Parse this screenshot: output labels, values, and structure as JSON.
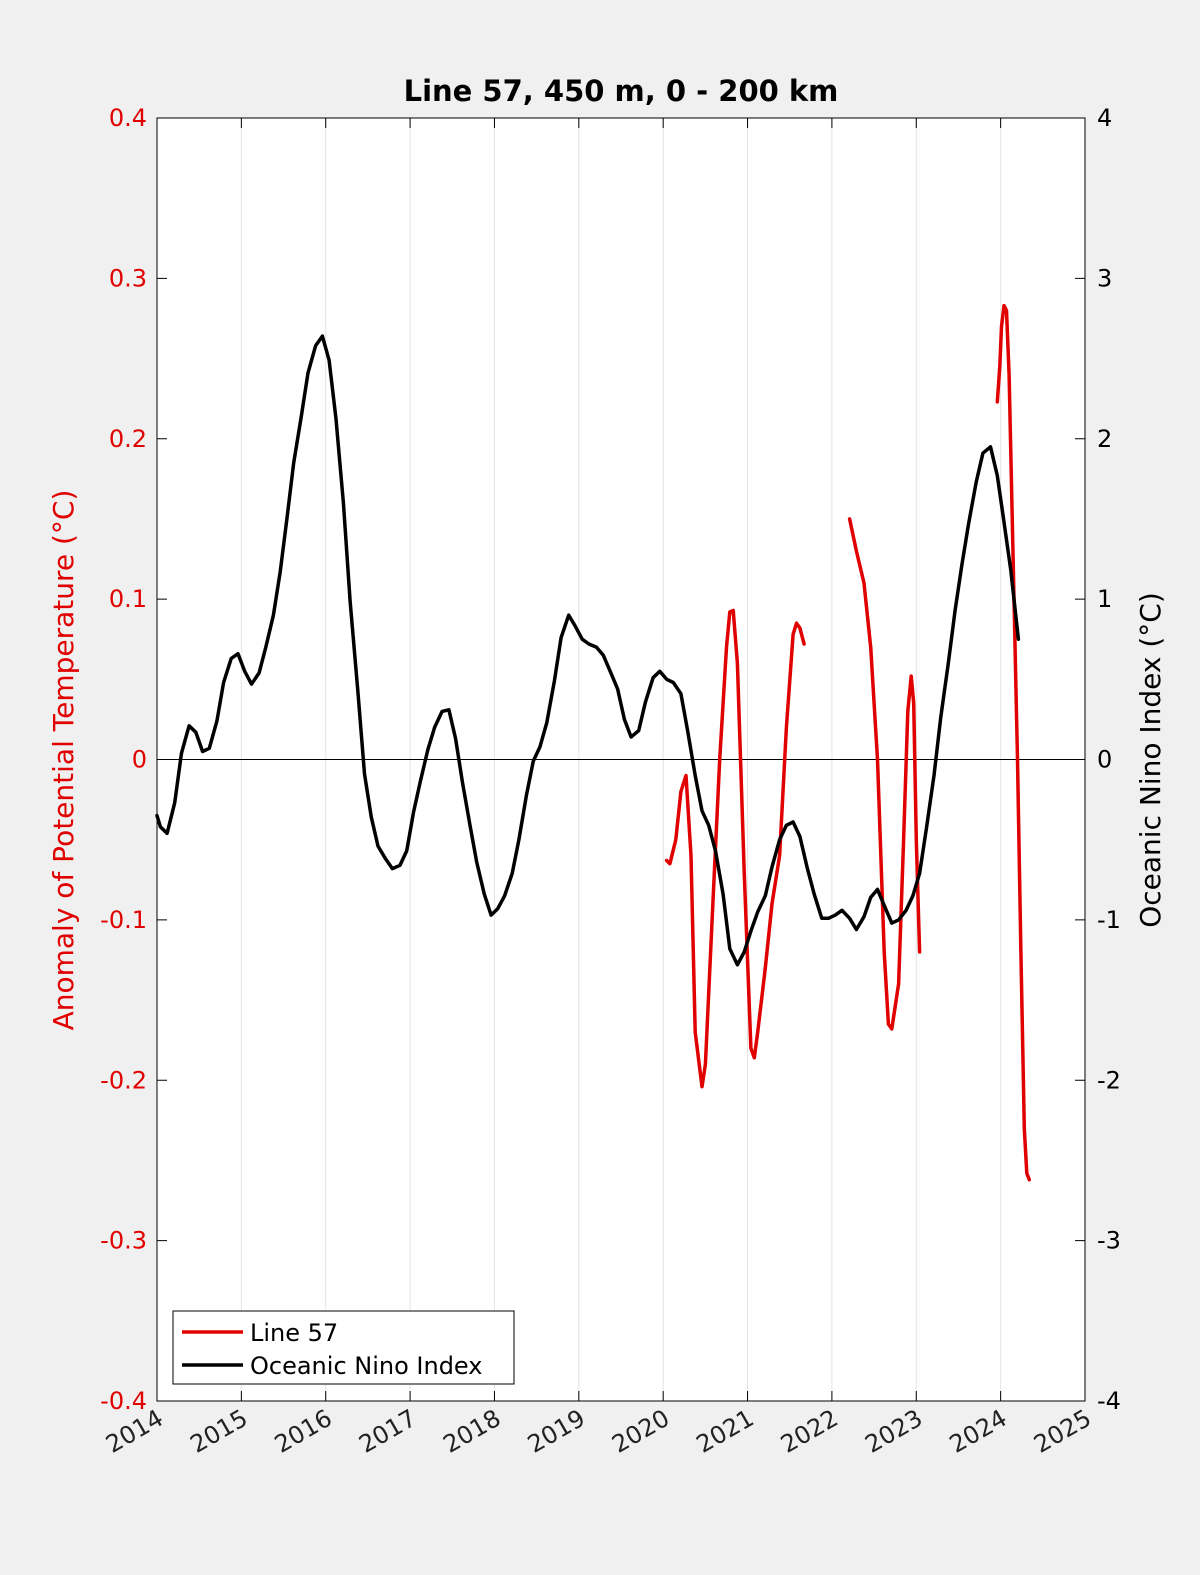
{
  "chart_data": {
    "type": "line",
    "title": "Line 57, 450 m, 0 - 200 km",
    "ylabel_left": "Anomaly of Potential Temperature (°C)",
    "ylabel_right": "Oceanic Nino Index (°C)",
    "xlim": [
      2014,
      2025
    ],
    "ylim_left": [
      -0.4,
      0.4
    ],
    "ylim_right": [
      -4,
      4
    ],
    "x_ticks": [
      "2014",
      "2015",
      "2016",
      "2017",
      "2018",
      "2019",
      "2020",
      "2021",
      "2022",
      "2023",
      "2024",
      "2025"
    ],
    "y_ticks_left": [
      "0.4",
      "0.3",
      "0.2",
      "0.1",
      "0",
      "-0.1",
      "-0.2",
      "-0.3",
      "-0.4"
    ],
    "y_ticks_right": [
      "4",
      "3",
      "2",
      "1",
      "0",
      "-1",
      "-2",
      "-3",
      "-4"
    ],
    "grid": "vertical",
    "legend_position": "bottom-left",
    "colors": {
      "line57": "#e00000",
      "oni": "#000000"
    },
    "series": [
      {
        "name": "Line 57",
        "axis": "left",
        "segments": [
          [
            [
              2020.04,
              -0.063
            ],
            [
              2020.08,
              -0.065
            ],
            [
              2020.15,
              -0.05
            ],
            [
              2020.21,
              -0.02
            ],
            [
              2020.27,
              -0.01
            ],
            [
              2020.33,
              -0.06
            ],
            [
              2020.38,
              -0.17
            ],
            [
              2020.46,
              -0.204
            ],
            [
              2020.5,
              -0.19
            ],
            [
              2020.58,
              -0.1
            ],
            [
              2020.67,
              0.0
            ],
            [
              2020.75,
              0.07
            ],
            [
              2020.79,
              0.092
            ],
            [
              2020.83,
              0.093
            ],
            [
              2020.88,
              0.06
            ],
            [
              2020.96,
              -0.07
            ],
            [
              2021.04,
              -0.18
            ],
            [
              2021.08,
              -0.186
            ],
            [
              2021.12,
              -0.17
            ],
            [
              2021.21,
              -0.13
            ],
            [
              2021.29,
              -0.09
            ],
            [
              2021.38,
              -0.06
            ],
            [
              2021.46,
              0.02
            ],
            [
              2021.54,
              0.078
            ],
            [
              2021.58,
              0.085
            ],
            [
              2021.62,
              0.082
            ],
            [
              2021.67,
              0.072
            ]
          ],
          [
            [
              2022.21,
              0.15
            ],
            [
              2022.29,
              0.13
            ],
            [
              2022.38,
              0.11
            ],
            [
              2022.46,
              0.07
            ],
            [
              2022.54,
              0.0
            ],
            [
              2022.62,
              -0.12
            ],
            [
              2022.67,
              -0.165
            ],
            [
              2022.71,
              -0.168
            ],
            [
              2022.79,
              -0.14
            ],
            [
              2022.85,
              -0.05
            ],
            [
              2022.9,
              0.03
            ],
            [
              2022.94,
              0.052
            ],
            [
              2022.97,
              0.035
            ],
            [
              2023.0,
              -0.05
            ],
            [
              2023.04,
              -0.12
            ]
          ],
          [
            [
              2023.96,
              0.223
            ],
            [
              2023.99,
              0.245
            ],
            [
              2024.01,
              0.27
            ],
            [
              2024.04,
              0.283
            ],
            [
              2024.07,
              0.28
            ],
            [
              2024.1,
              0.24
            ],
            [
              2024.15,
              0.12
            ],
            [
              2024.2,
              0.0
            ],
            [
              2024.24,
              -0.12
            ],
            [
              2024.28,
              -0.23
            ],
            [
              2024.31,
              -0.258
            ],
            [
              2024.34,
              -0.262
            ]
          ]
        ]
      },
      {
        "name": "Oceanic Nino Index",
        "axis": "right",
        "segments": [
          [
            [
              2014.0,
              -0.35
            ],
            [
              2014.04,
              -0.42
            ],
            [
              2014.12,
              -0.46
            ],
            [
              2014.21,
              -0.27
            ],
            [
              2014.29,
              0.04
            ],
            [
              2014.38,
              0.21
            ],
            [
              2014.46,
              0.17
            ],
            [
              2014.54,
              0.05
            ],
            [
              2014.62,
              0.07
            ],
            [
              2014.71,
              0.24
            ],
            [
              2014.79,
              0.48
            ],
            [
              2014.88,
              0.63
            ],
            [
              2014.96,
              0.66
            ],
            [
              2015.04,
              0.55
            ],
            [
              2015.12,
              0.47
            ],
            [
              2015.21,
              0.54
            ],
            [
              2015.29,
              0.7
            ],
            [
              2015.38,
              0.9
            ],
            [
              2015.46,
              1.17
            ],
            [
              2015.54,
              1.5
            ],
            [
              2015.62,
              1.85
            ],
            [
              2015.71,
              2.14
            ],
            [
              2015.79,
              2.41
            ],
            [
              2015.88,
              2.58
            ],
            [
              2015.96,
              2.64
            ],
            [
              2016.04,
              2.49
            ],
            [
              2016.12,
              2.13
            ],
            [
              2016.21,
              1.6
            ],
            [
              2016.29,
              0.98
            ],
            [
              2016.38,
              0.43
            ],
            [
              2016.46,
              -0.09
            ],
            [
              2016.54,
              -0.36
            ],
            [
              2016.62,
              -0.54
            ],
            [
              2016.71,
              -0.62
            ],
            [
              2016.79,
              -0.68
            ],
            [
              2016.88,
              -0.66
            ],
            [
              2016.96,
              -0.57
            ],
            [
              2017.04,
              -0.33
            ],
            [
              2017.12,
              -0.14
            ],
            [
              2017.21,
              0.06
            ],
            [
              2017.29,
              0.2
            ],
            [
              2017.38,
              0.3
            ],
            [
              2017.46,
              0.31
            ],
            [
              2017.54,
              0.13
            ],
            [
              2017.62,
              -0.14
            ],
            [
              2017.71,
              -0.41
            ],
            [
              2017.79,
              -0.64
            ],
            [
              2017.88,
              -0.84
            ],
            [
              2017.96,
              -0.97
            ],
            [
              2018.04,
              -0.93
            ],
            [
              2018.12,
              -0.85
            ],
            [
              2018.21,
              -0.71
            ],
            [
              2018.29,
              -0.5
            ],
            [
              2018.38,
              -0.22
            ],
            [
              2018.46,
              -0.01
            ],
            [
              2018.54,
              0.08
            ],
            [
              2018.62,
              0.23
            ],
            [
              2018.71,
              0.49
            ],
            [
              2018.79,
              0.76
            ],
            [
              2018.88,
              0.9
            ],
            [
              2018.96,
              0.83
            ],
            [
              2019.04,
              0.75
            ],
            [
              2019.12,
              0.72
            ],
            [
              2019.21,
              0.7
            ],
            [
              2019.29,
              0.65
            ],
            [
              2019.38,
              0.54
            ],
            [
              2019.46,
              0.44
            ],
            [
              2019.54,
              0.25
            ],
            [
              2019.62,
              0.14
            ],
            [
              2019.71,
              0.18
            ],
            [
              2019.79,
              0.36
            ],
            [
              2019.88,
              0.51
            ],
            [
              2019.96,
              0.55
            ],
            [
              2020.04,
              0.5
            ],
            [
              2020.12,
              0.48
            ],
            [
              2020.21,
              0.41
            ],
            [
              2020.29,
              0.18
            ],
            [
              2020.38,
              -0.1
            ],
            [
              2020.46,
              -0.32
            ],
            [
              2020.54,
              -0.41
            ],
            [
              2020.62,
              -0.57
            ],
            [
              2020.71,
              -0.84
            ],
            [
              2020.79,
              -1.18
            ],
            [
              2020.88,
              -1.28
            ],
            [
              2020.96,
              -1.2
            ],
            [
              2021.04,
              -1.07
            ],
            [
              2021.12,
              -0.95
            ],
            [
              2021.21,
              -0.85
            ],
            [
              2021.29,
              -0.67
            ],
            [
              2021.38,
              -0.5
            ],
            [
              2021.46,
              -0.41
            ],
            [
              2021.54,
              -0.39
            ],
            [
              2021.62,
              -0.48
            ],
            [
              2021.71,
              -0.68
            ],
            [
              2021.79,
              -0.84
            ],
            [
              2021.88,
              -0.99
            ],
            [
              2021.96,
              -0.99
            ],
            [
              2022.04,
              -0.97
            ],
            [
              2022.12,
              -0.94
            ],
            [
              2022.21,
              -0.99
            ],
            [
              2022.29,
              -1.06
            ],
            [
              2022.38,
              -0.98
            ],
            [
              2022.46,
              -0.86
            ],
            [
              2022.54,
              -0.81
            ],
            [
              2022.62,
              -0.91
            ],
            [
              2022.71,
              -1.02
            ],
            [
              2022.79,
              -1.0
            ],
            [
              2022.88,
              -0.94
            ],
            [
              2022.96,
              -0.85
            ],
            [
              2023.04,
              -0.71
            ],
            [
              2023.12,
              -0.43
            ],
            [
              2023.21,
              -0.1
            ],
            [
              2023.29,
              0.26
            ],
            [
              2023.38,
              0.6
            ],
            [
              2023.46,
              0.93
            ],
            [
              2023.54,
              1.21
            ],
            [
              2023.62,
              1.47
            ],
            [
              2023.71,
              1.73
            ],
            [
              2023.79,
              1.91
            ],
            [
              2023.88,
              1.95
            ],
            [
              2023.96,
              1.77
            ],
            [
              2024.04,
              1.48
            ],
            [
              2024.12,
              1.18
            ],
            [
              2024.21,
              0.75
            ]
          ]
        ]
      }
    ]
  }
}
